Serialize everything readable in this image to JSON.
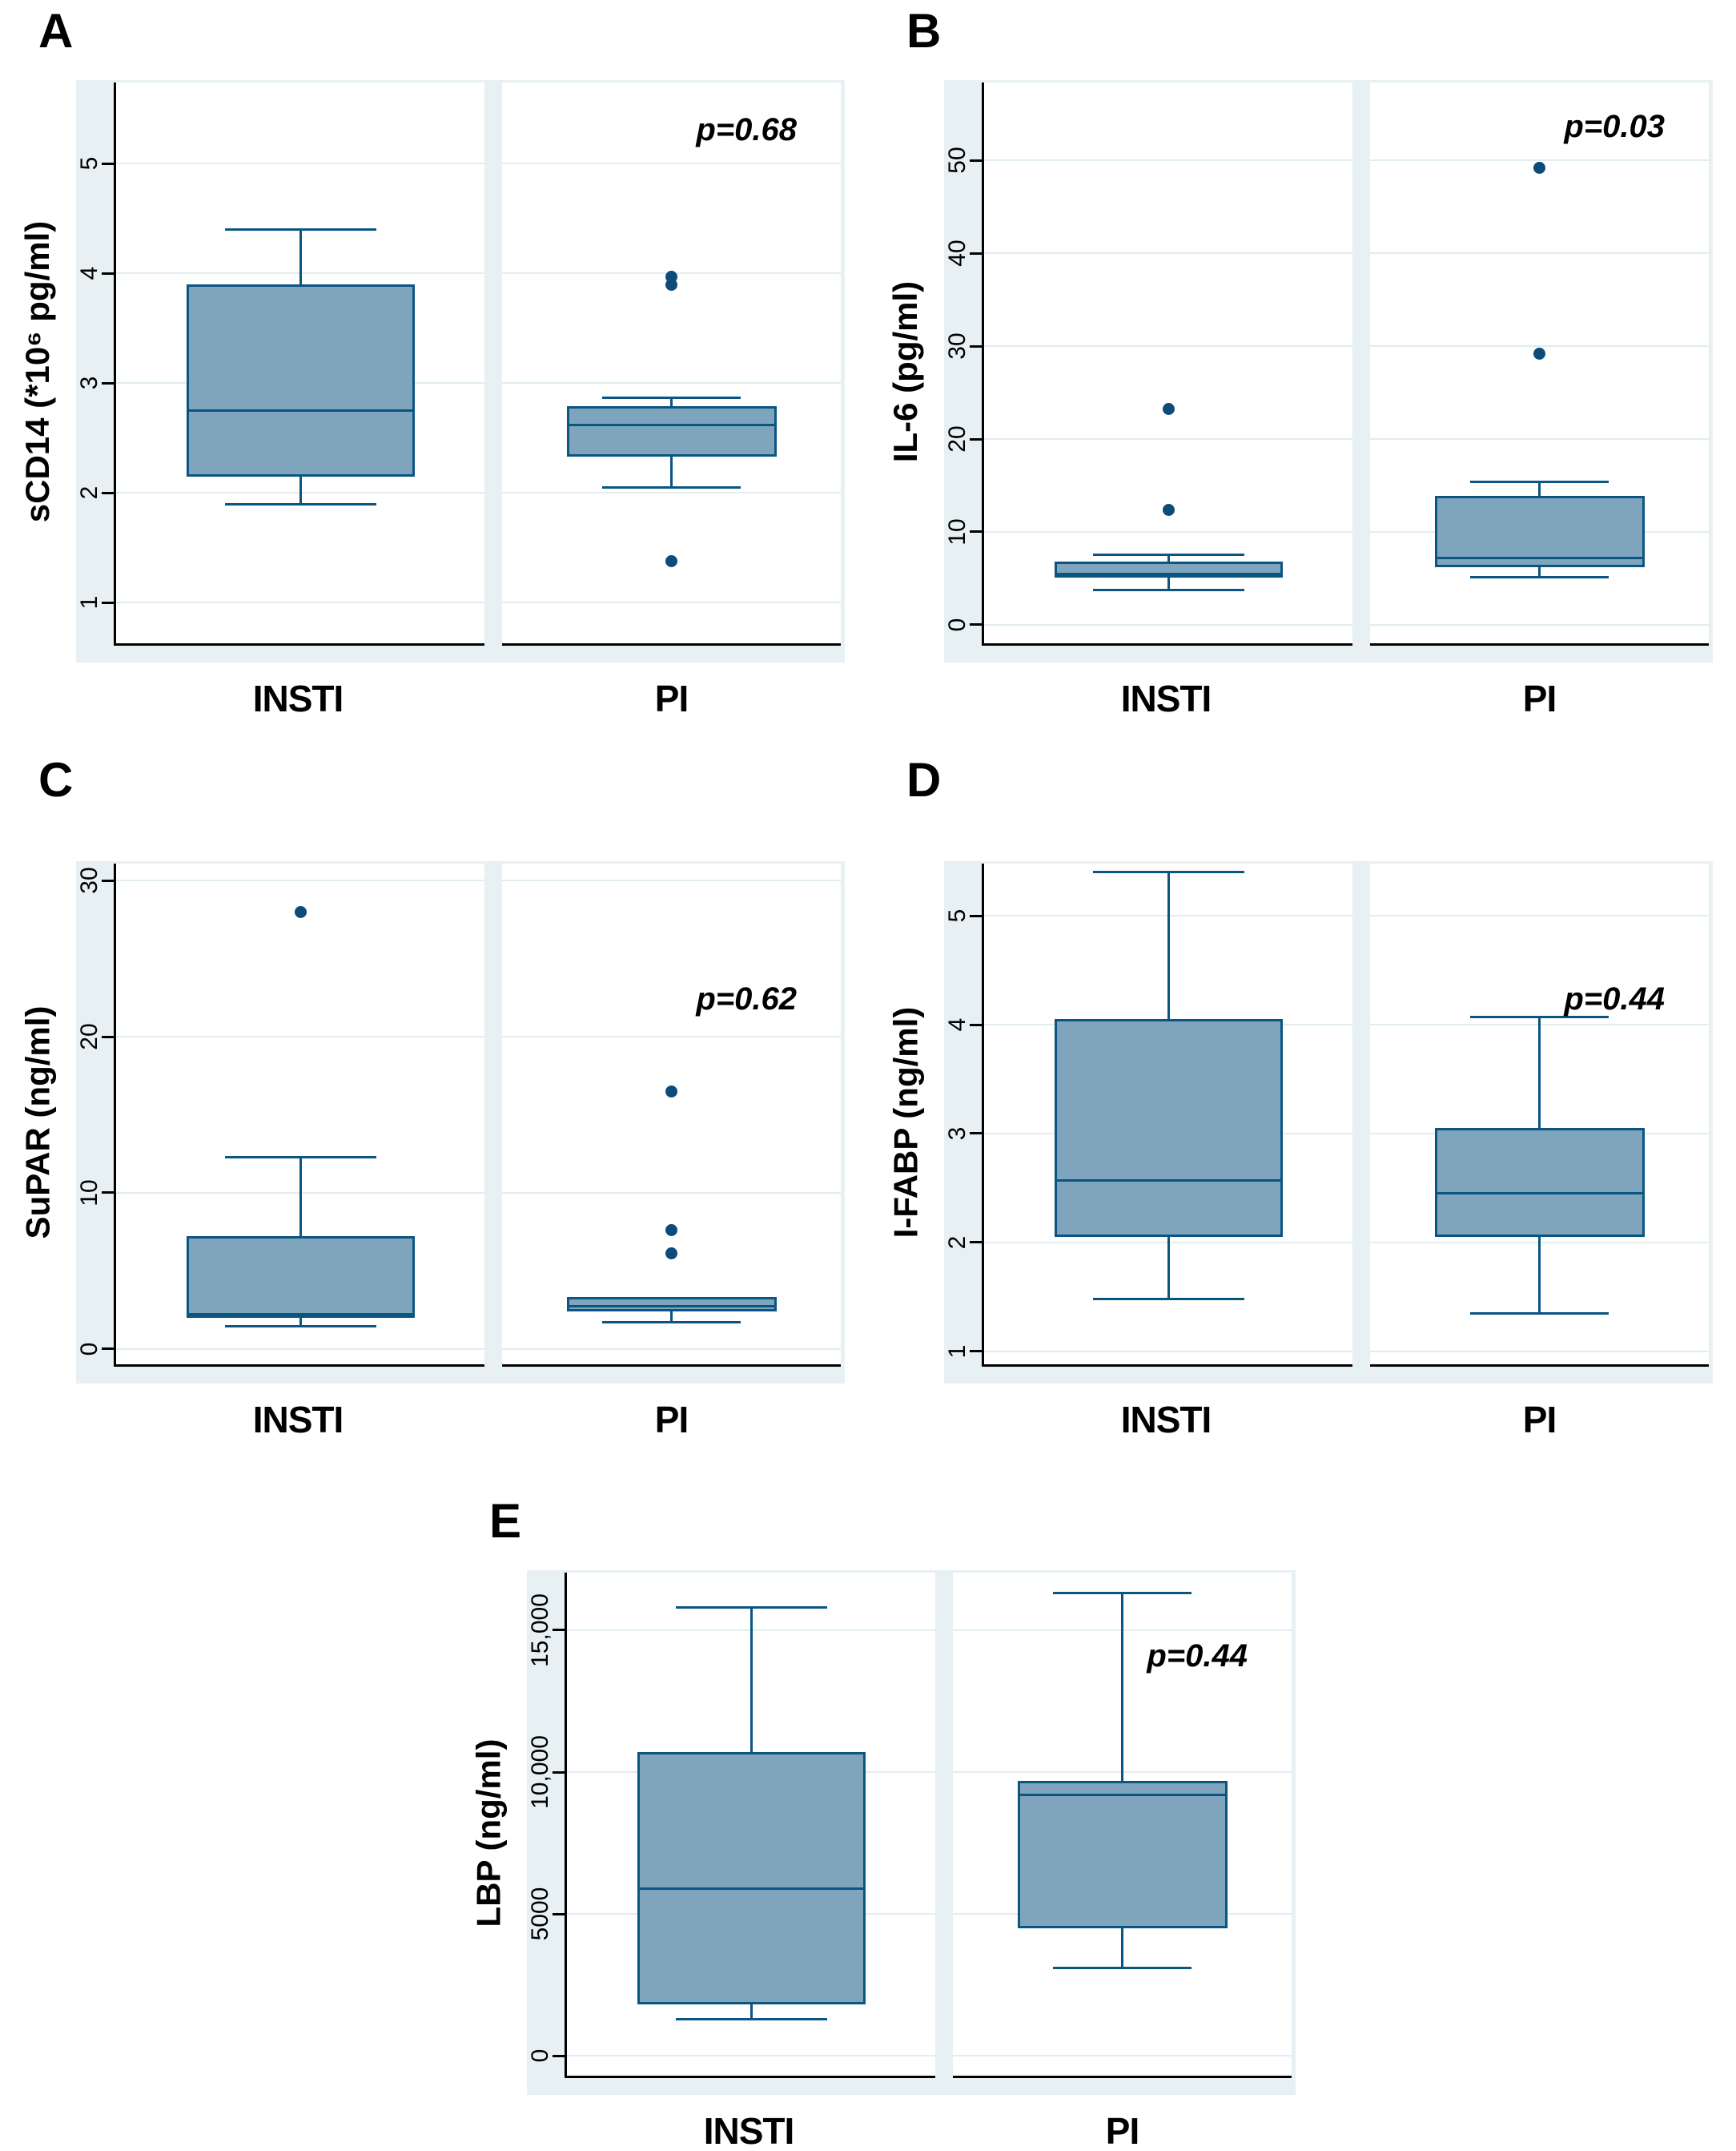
{
  "chart_data": [
    {
      "type": "box",
      "letter": "A",
      "y_label": "sCD14 (*10⁶ pg/ml)",
      "p_label": "p=0.68",
      "y_ticks": [
        1,
        2,
        3,
        4,
        5
      ],
      "y_tick_labels": [
        "1",
        "2",
        "3",
        "4",
        "5"
      ],
      "y_range": [
        0.63,
        5.74
      ],
      "categories": [
        "INSTI",
        "PI"
      ],
      "groups": [
        {
          "label": "INSTI",
          "low": 1.9,
          "q1": 2.15,
          "median": 2.75,
          "q3": 3.9,
          "high": 4.4,
          "outliers": []
        },
        {
          "label": "PI",
          "low": 2.05,
          "q1": 2.33,
          "median": 2.62,
          "q3": 2.79,
          "high": 2.87,
          "outliers": [
            3.97,
            3.9,
            1.38
          ]
        }
      ]
    },
    {
      "type": "box",
      "letter": "B",
      "y_label": "IL-6 (pg/ml)",
      "p_label": "p=0.03",
      "y_ticks": [
        0,
        10,
        20,
        30,
        40,
        50
      ],
      "y_tick_labels": [
        "0",
        "10",
        "20",
        "30",
        "40",
        "50"
      ],
      "y_range": [
        -2,
        58.4
      ],
      "categories": [
        "INSTI",
        "PI"
      ],
      "groups": [
        {
          "label": "INSTI",
          "low": 3.7,
          "q1": 5.1,
          "median": 5.5,
          "q3": 6.8,
          "high": 7.5,
          "outliers": [
            12.4,
            23.2
          ]
        },
        {
          "label": "PI",
          "low": 5.1,
          "q1": 6.2,
          "median": 7.2,
          "q3": 13.9,
          "high": 15.4,
          "outliers": [
            29.2,
            49.2
          ]
        }
      ]
    },
    {
      "type": "box",
      "letter": "C",
      "y_label": "SuPAR (ng/ml)",
      "p_label": "p=0.62",
      "y_ticks": [
        0,
        10,
        20,
        30
      ],
      "y_tick_labels": [
        "0",
        "10",
        "20",
        "30"
      ],
      "y_range": [
        -1,
        31.1
      ],
      "categories": [
        "INSTI",
        "PI"
      ],
      "groups": [
        {
          "label": "INSTI",
          "low": 1.45,
          "q1": 2.0,
          "median": 2.2,
          "q3": 7.2,
          "high": 12.3,
          "outliers": [
            28.0
          ]
        },
        {
          "label": "PI",
          "low": 1.7,
          "q1": 2.4,
          "median": 2.7,
          "q3": 3.3,
          "high": 3.3,
          "outliers": [
            16.5,
            7.6,
            6.1
          ]
        }
      ]
    },
    {
      "type": "box",
      "letter": "D",
      "y_label": "I-FABP (ng/ml)",
      "p_label": "p=0.44",
      "y_ticks": [
        1,
        2,
        3,
        4,
        5
      ],
      "y_tick_labels": [
        "1",
        "2",
        "3",
        "4",
        "5"
      ],
      "y_range": [
        0.88,
        5.48
      ],
      "categories": [
        "INSTI",
        "PI"
      ],
      "groups": [
        {
          "label": "INSTI",
          "low": 1.48,
          "q1": 2.05,
          "median": 2.57,
          "q3": 4.05,
          "high": 5.4,
          "outliers": []
        },
        {
          "label": "PI",
          "low": 1.35,
          "q1": 2.05,
          "median": 2.45,
          "q3": 3.05,
          "high": 4.07,
          "outliers": []
        }
      ]
    },
    {
      "type": "box",
      "letter": "E",
      "y_label": "LBP (ng/ml)",
      "p_label": "p=0.44",
      "y_ticks": [
        0,
        5000,
        10000,
        15000
      ],
      "y_tick_labels": [
        "0",
        "5000",
        "10,000",
        "15,000"
      ],
      "y_range": [
        -700,
        17030
      ],
      "categories": [
        "INSTI",
        "PI"
      ],
      "groups": [
        {
          "label": "INSTI",
          "low": 1300,
          "q1": 1800,
          "median": 5900,
          "q3": 10700,
          "high": 15800,
          "outliers": []
        },
        {
          "label": "PI",
          "low": 3100,
          "q1": 4500,
          "median": 9200,
          "q3": 9700,
          "high": 16300,
          "outliers": []
        }
      ]
    }
  ]
}
